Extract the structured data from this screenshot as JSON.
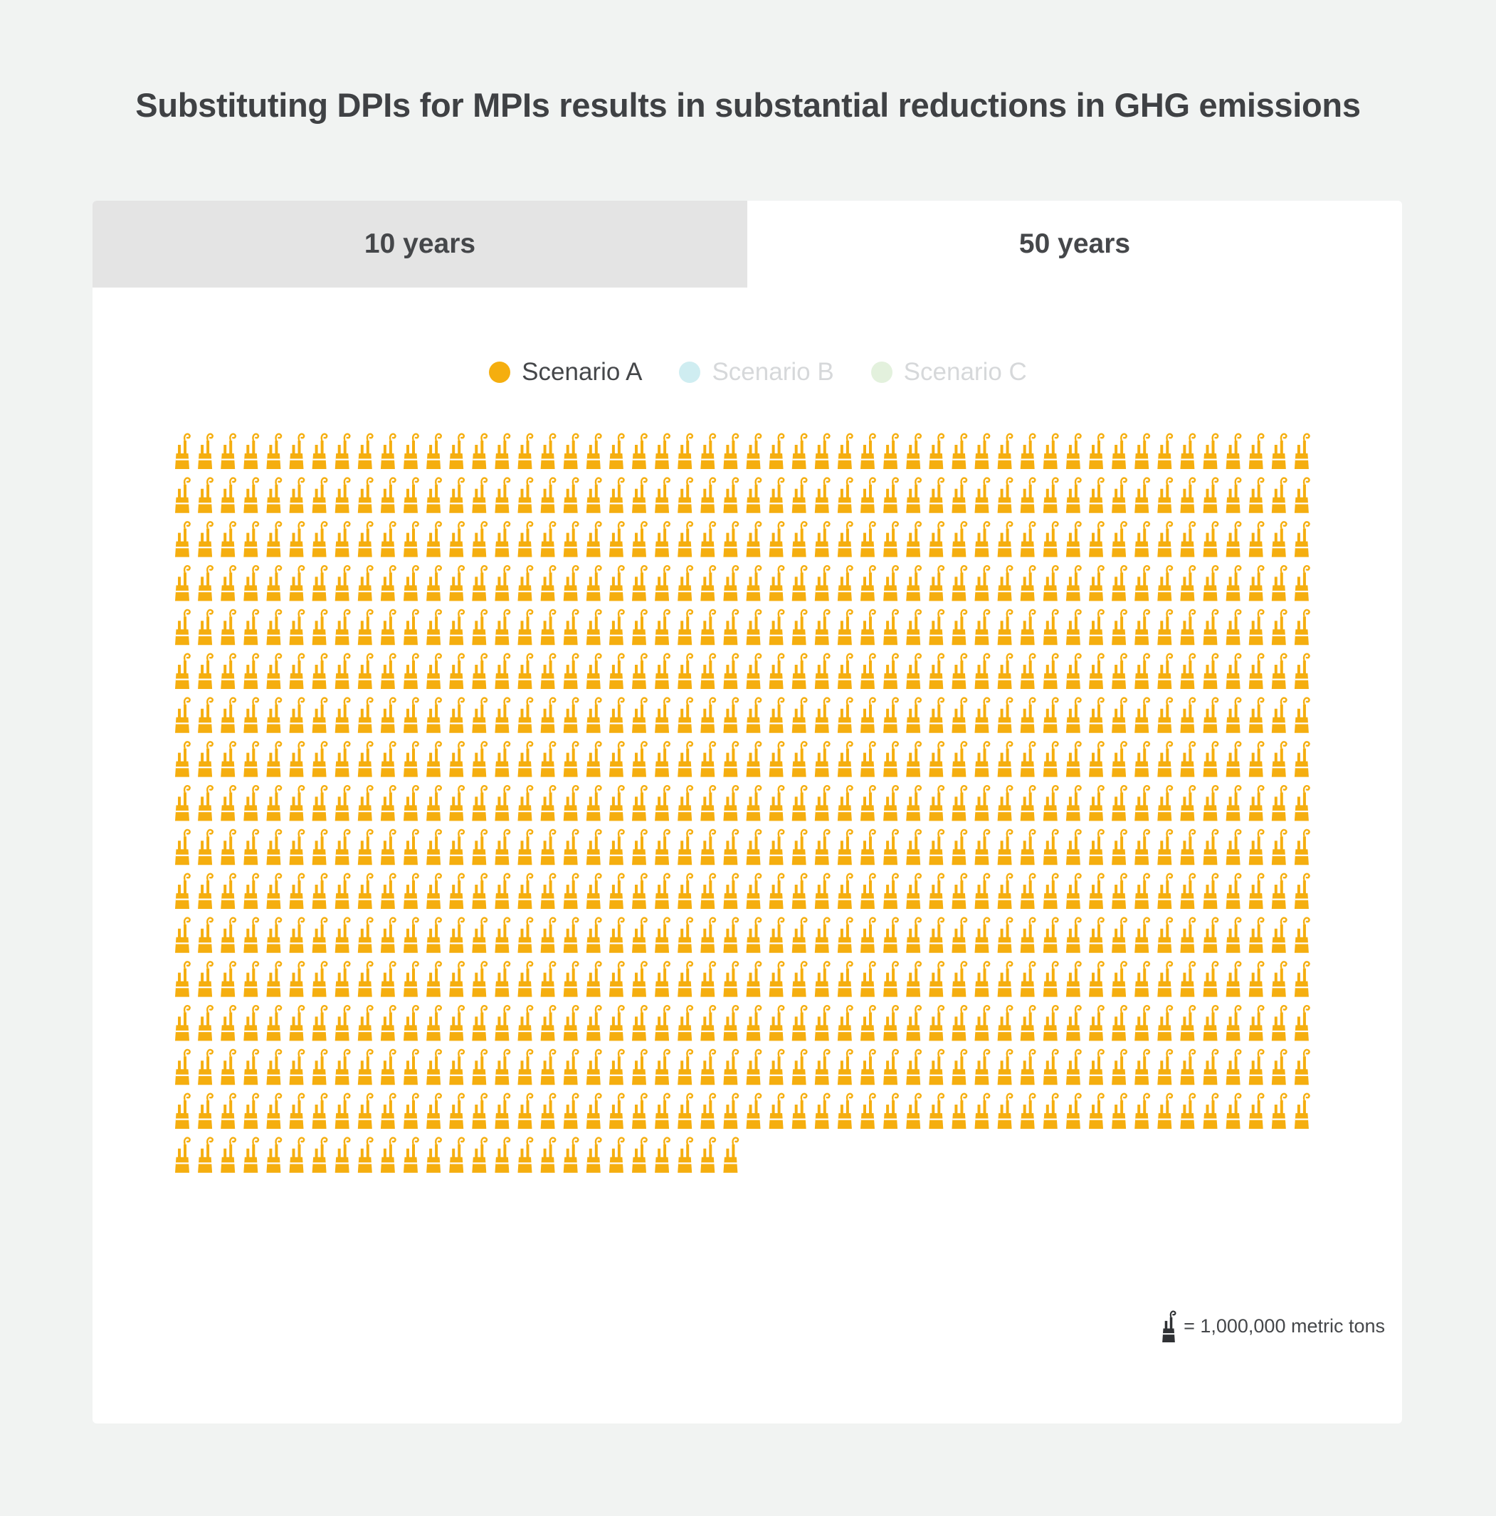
{
  "title": "Substituting DPIs for MPIs results in substantial reductions in GHG emissions",
  "tabs": [
    {
      "label": "10 years",
      "selected": false
    },
    {
      "label": "50 years",
      "selected": true
    }
  ],
  "legend": [
    {
      "label": "Scenario A",
      "color": "#f5ae0f",
      "active": true
    },
    {
      "label": "Scenario B",
      "color": "#cfedf1",
      "active": false
    },
    {
      "label": "Scenario C",
      "color": "#e3f1dd",
      "active": false
    }
  ],
  "footnote": {
    "icon": "factory-icon",
    "text": "= 1,000,000 metric tons"
  },
  "chart_data": {
    "type": "waffle",
    "unit_label": "= 1,000,000 metric tons",
    "units_per_icon": 1000000,
    "icon": "factory-icon",
    "series": [
      {
        "name": "Scenario A",
        "icons": 825,
        "color": "#f5ae0f"
      }
    ],
    "icons_per_row": 50
  }
}
